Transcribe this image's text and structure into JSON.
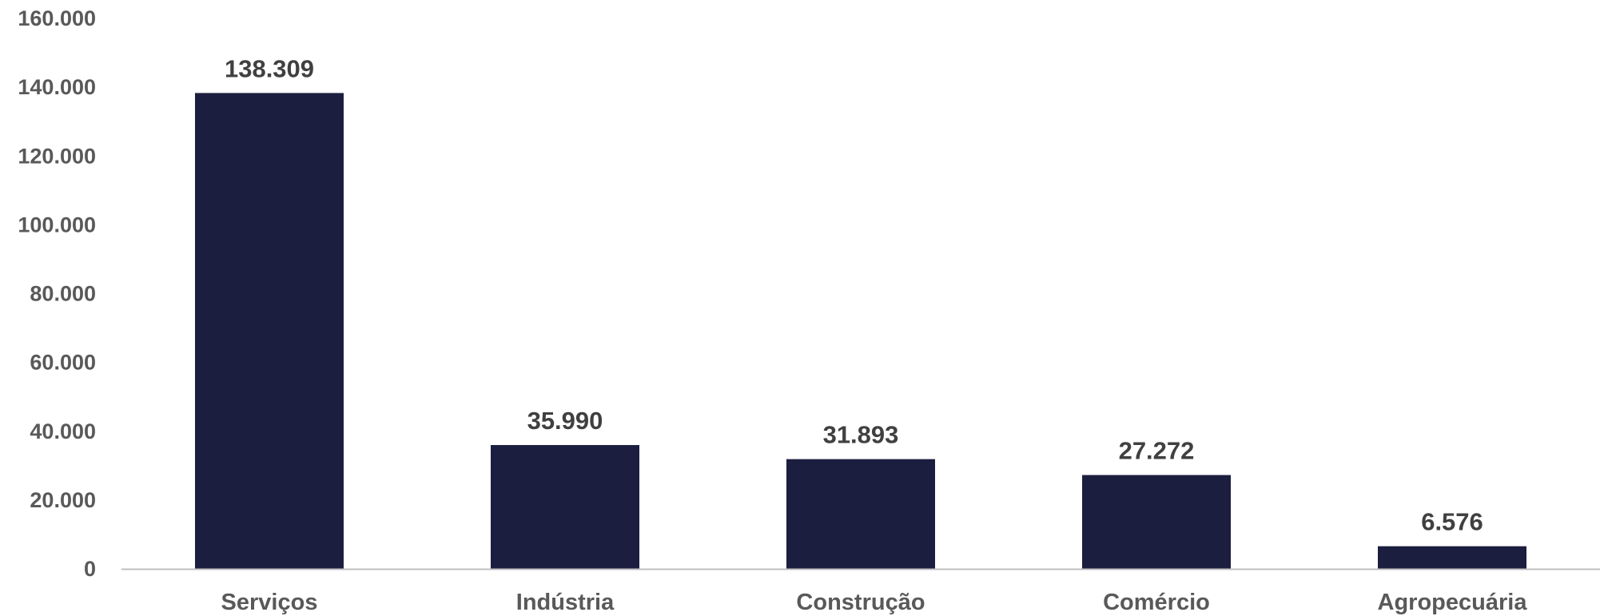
{
  "chart_data": {
    "type": "bar",
    "categories": [
      "Serviços",
      "Indústria",
      "Construção",
      "Comércio",
      "Agropecuária"
    ],
    "values": [
      138309,
      35990,
      31893,
      27272,
      6576
    ],
    "value_labels": [
      "138.309",
      "35.990",
      "31.893",
      "27.272",
      "6.576"
    ],
    "yticks": [
      0,
      20000,
      40000,
      60000,
      80000,
      100000,
      120000,
      140000,
      160000
    ],
    "ytick_labels": [
      "0",
      "20.000",
      "40.000",
      "60.000",
      "80.000",
      "100.000",
      "120.000",
      "140.000",
      "160.000"
    ],
    "ylim": [
      0,
      160000
    ],
    "grid": false,
    "legend": "none",
    "bar_color": "#1c1e3f",
    "axis_color": "#bfbfbf"
  }
}
